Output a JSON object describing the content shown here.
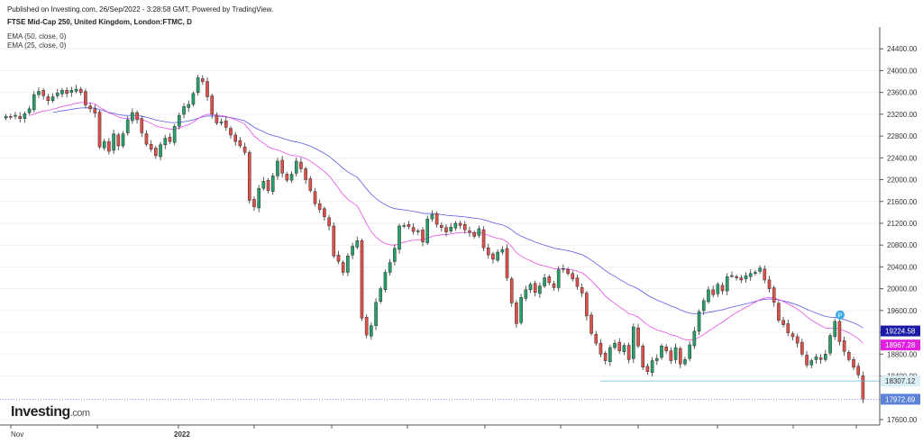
{
  "header": {
    "published": "Published on Investing.com, 26/Sep/2022 - 3:28:58 GMT, Powered by TradingView.",
    "title": "FTSE Mid-Cap 250, United Kingdom, London:FTMC, D"
  },
  "legend": [
    {
      "label": "EMA (50, close, 0)",
      "color": "#5b5be6"
    },
    {
      "label": "EMA (25, close, 0)",
      "color": "#e64de6"
    }
  ],
  "logo": {
    "text": "Investing",
    "suffix": ".com"
  },
  "chart_data": {
    "type": "candlestick",
    "y_ticks": [
      "24400.00",
      "24000.00",
      "23600.00",
      "23200.00",
      "22800.00",
      "22400.00",
      "22000.00",
      "21600.00",
      "21200.00",
      "20800.00",
      "20400.00",
      "20000.00",
      "19600.00",
      "19200.00",
      "18800.00",
      "18400.00",
      "17600.00"
    ],
    "ylim": [
      17500,
      24800
    ],
    "x_labels": [
      "Nov",
      "2022"
    ],
    "price_labels": [
      {
        "text": "19224.58",
        "value": 19224.58,
        "bg": "#1a1aa6"
      },
      {
        "text": "18967.28",
        "value": 18967.28,
        "bg": "#e020e0"
      },
      {
        "text": "18307.12",
        "value": 18307.12,
        "bg": "#d9eef5"
      },
      {
        "text": "17972.69",
        "value": 17972.69,
        "bg": "#5b82d6"
      }
    ],
    "reference_lines": [
      18307.12,
      17972.69
    ],
    "marker": {
      "text": "P",
      "color": "#3da9e6",
      "value": 19520
    },
    "closes": [
      23160,
      23150,
      23180,
      23120,
      23210,
      23300,
      23560,
      23620,
      23540,
      23450,
      23520,
      23590,
      23640,
      23580,
      23640,
      23660,
      23600,
      23370,
      23300,
      23220,
      22600,
      22700,
      22520,
      22840,
      22620,
      22840,
      23100,
      23230,
      23100,
      22860,
      22650,
      22560,
      22440,
      22640,
      22760,
      22700,
      22980,
      23180,
      23340,
      23380,
      23580,
      23870,
      23800,
      23520,
      23200,
      23040,
      23060,
      22960,
      22820,
      22700,
      22620,
      22500,
      21620,
      21500,
      21840,
      21970,
      21800,
      22070,
      22340,
      22120,
      21990,
      22100,
      22340,
      22200,
      22000,
      21800,
      21560,
      21450,
      21320,
      21150,
      20600,
      20500,
      20300,
      20600,
      20780,
      20880,
      19460,
      19150,
      19320,
      19750,
      20000,
      20300,
      20480,
      20740,
      21150,
      21160,
      21140,
      21050,
      21060,
      20860,
      21280,
      21360,
      21180,
      21120,
      21040,
      21130,
      21200,
      21160,
      21080,
      21030,
      20960,
      21100,
      20750,
      20620,
      20540,
      20670,
      20720,
      20200,
      19740,
      19360,
      19840,
      19980,
      20080,
      19930,
      20050,
      20200,
      20110,
      20020,
      20350,
      20370,
      20280,
      20180,
      20040,
      19920,
      19500,
      19180,
      19000,
      18800,
      18680,
      18920,
      19000,
      18860,
      18960,
      18700,
      19300,
      18950,
      18560,
      18480,
      18680,
      18720,
      18950,
      18860,
      18680,
      18920,
      18620,
      18700,
      18970,
      19220,
      19580,
      19780,
      19980,
      19890,
      20080,
      19960,
      20220,
      20240,
      20200,
      20160,
      20240,
      20280,
      20300,
      20380,
      20160,
      20000,
      19750,
      19420,
      19340,
      19190,
      19120,
      19000,
      18800,
      18600,
      18680,
      18750,
      18700,
      18800,
      19140,
      19400,
      19030,
      18850,
      18700,
      18560,
      18420,
      17972.69
    ]
  }
}
